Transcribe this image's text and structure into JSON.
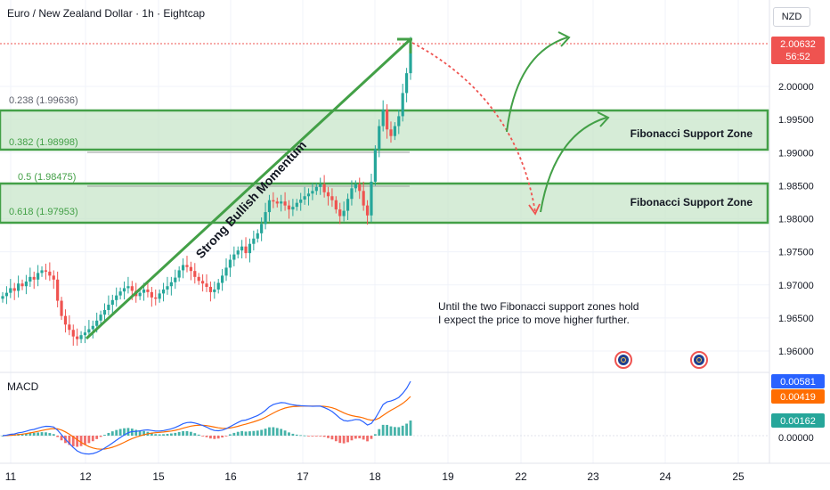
{
  "header": {
    "title": "Euro / New Zealand Dollar · 1h · Eightcap",
    "currency": "NZD"
  },
  "chart_data": [
    {
      "type": "candlestick",
      "title": "Euro / New Zealand Dollar · 1h · Eightcap",
      "x_ticks": [
        "11",
        "12",
        "15",
        "16",
        "17",
        "18",
        "19",
        "22",
        "23",
        "24",
        "25"
      ],
      "y_ticks": [
        "1.96000",
        "1.96500",
        "1.97000",
        "1.97500",
        "1.98000",
        "1.98500",
        "1.99000",
        "1.99500",
        "2.00000"
      ],
      "ylim": [
        1.9575,
        2.0095
      ],
      "last_price": {
        "value": "2.00632",
        "countdown": "56:52"
      },
      "closes": [
        1.9683,
        1.9688,
        1.9695,
        1.9691,
        1.9702,
        1.9698,
        1.9705,
        1.9712,
        1.9708,
        1.9718,
        1.9722,
        1.972,
        1.9714,
        1.9708,
        1.9676,
        1.9653,
        1.964,
        1.9632,
        1.9622,
        1.9618,
        1.9624,
        1.9628,
        1.9633,
        1.9638,
        1.9646,
        1.9655,
        1.9662,
        1.967,
        1.9677,
        1.9684,
        1.969,
        1.9695,
        1.9698,
        1.9691,
        1.9683,
        1.9688,
        1.9693,
        1.9689,
        1.9681,
        1.9679,
        1.9687,
        1.9693,
        1.9698,
        1.9704,
        1.9711,
        1.9722,
        1.973,
        1.9727,
        1.9721,
        1.9712,
        1.9706,
        1.9702,
        1.9697,
        1.9689,
        1.9693,
        1.9703,
        1.9714,
        1.9726,
        1.9738,
        1.9746,
        1.9752,
        1.9758,
        1.9748,
        1.9762,
        1.977,
        1.9778,
        1.9792,
        1.981,
        1.9828,
        1.9826,
        1.9823,
        1.9826,
        1.982,
        1.9814,
        1.9818,
        1.9824,
        1.9829,
        1.9834,
        1.9838,
        1.9842,
        1.9848,
        1.9852,
        1.984,
        1.9834,
        1.9828,
        1.9814,
        1.9804,
        1.9812,
        1.983,
        1.9846,
        1.9852,
        1.9842,
        1.982,
        1.9805,
        1.9856,
        1.9905,
        1.994,
        1.9965,
        1.9935,
        1.9925,
        1.994,
        1.9955,
        1.999,
        2.002,
        2.0063
      ],
      "fib_levels": [
        {
          "label": "0.238 (1.99636)",
          "value": 1.99636
        },
        {
          "label": "0.382 (1.98998)",
          "value": 1.98998
        },
        {
          "label": "0.5 (1.98475)",
          "value": 1.98475
        },
        {
          "label": "0.618 (1.97953)",
          "value": 1.97953
        }
      ],
      "zones": [
        {
          "label": "Fibonacci Support Zone",
          "top": 1.9962,
          "bottom": 1.9905
        },
        {
          "label": "Fibonacci Support Zone",
          "top": 1.9855,
          "bottom": 1.9797
        }
      ],
      "annotations": {
        "momentum": "Strong Bullish Momentum",
        "note_line1": "Until the two Fibonacci support zones hold",
        "note_line2": "I expect the price to move higher further."
      },
      "macd": {
        "label": "MACD",
        "values": {
          "macd": "0.00581",
          "signal": "0.00419",
          "histogram": "0.00162",
          "zero": "0.00000"
        },
        "ylim": [
          -0.0016,
          0.0065
        ],
        "colors": {
          "macd": "#2962ff",
          "signal": "#ff6d00",
          "hist_up": "#26a69a",
          "hist_down": "#ef5350"
        }
      },
      "colors": {
        "up": "#26a69a",
        "down": "#ef5350",
        "zone_fill": "#c8e6c9",
        "zone_border": "#43a047",
        "arrow": "#43a047",
        "forecast": "#ef5350"
      }
    }
  ]
}
